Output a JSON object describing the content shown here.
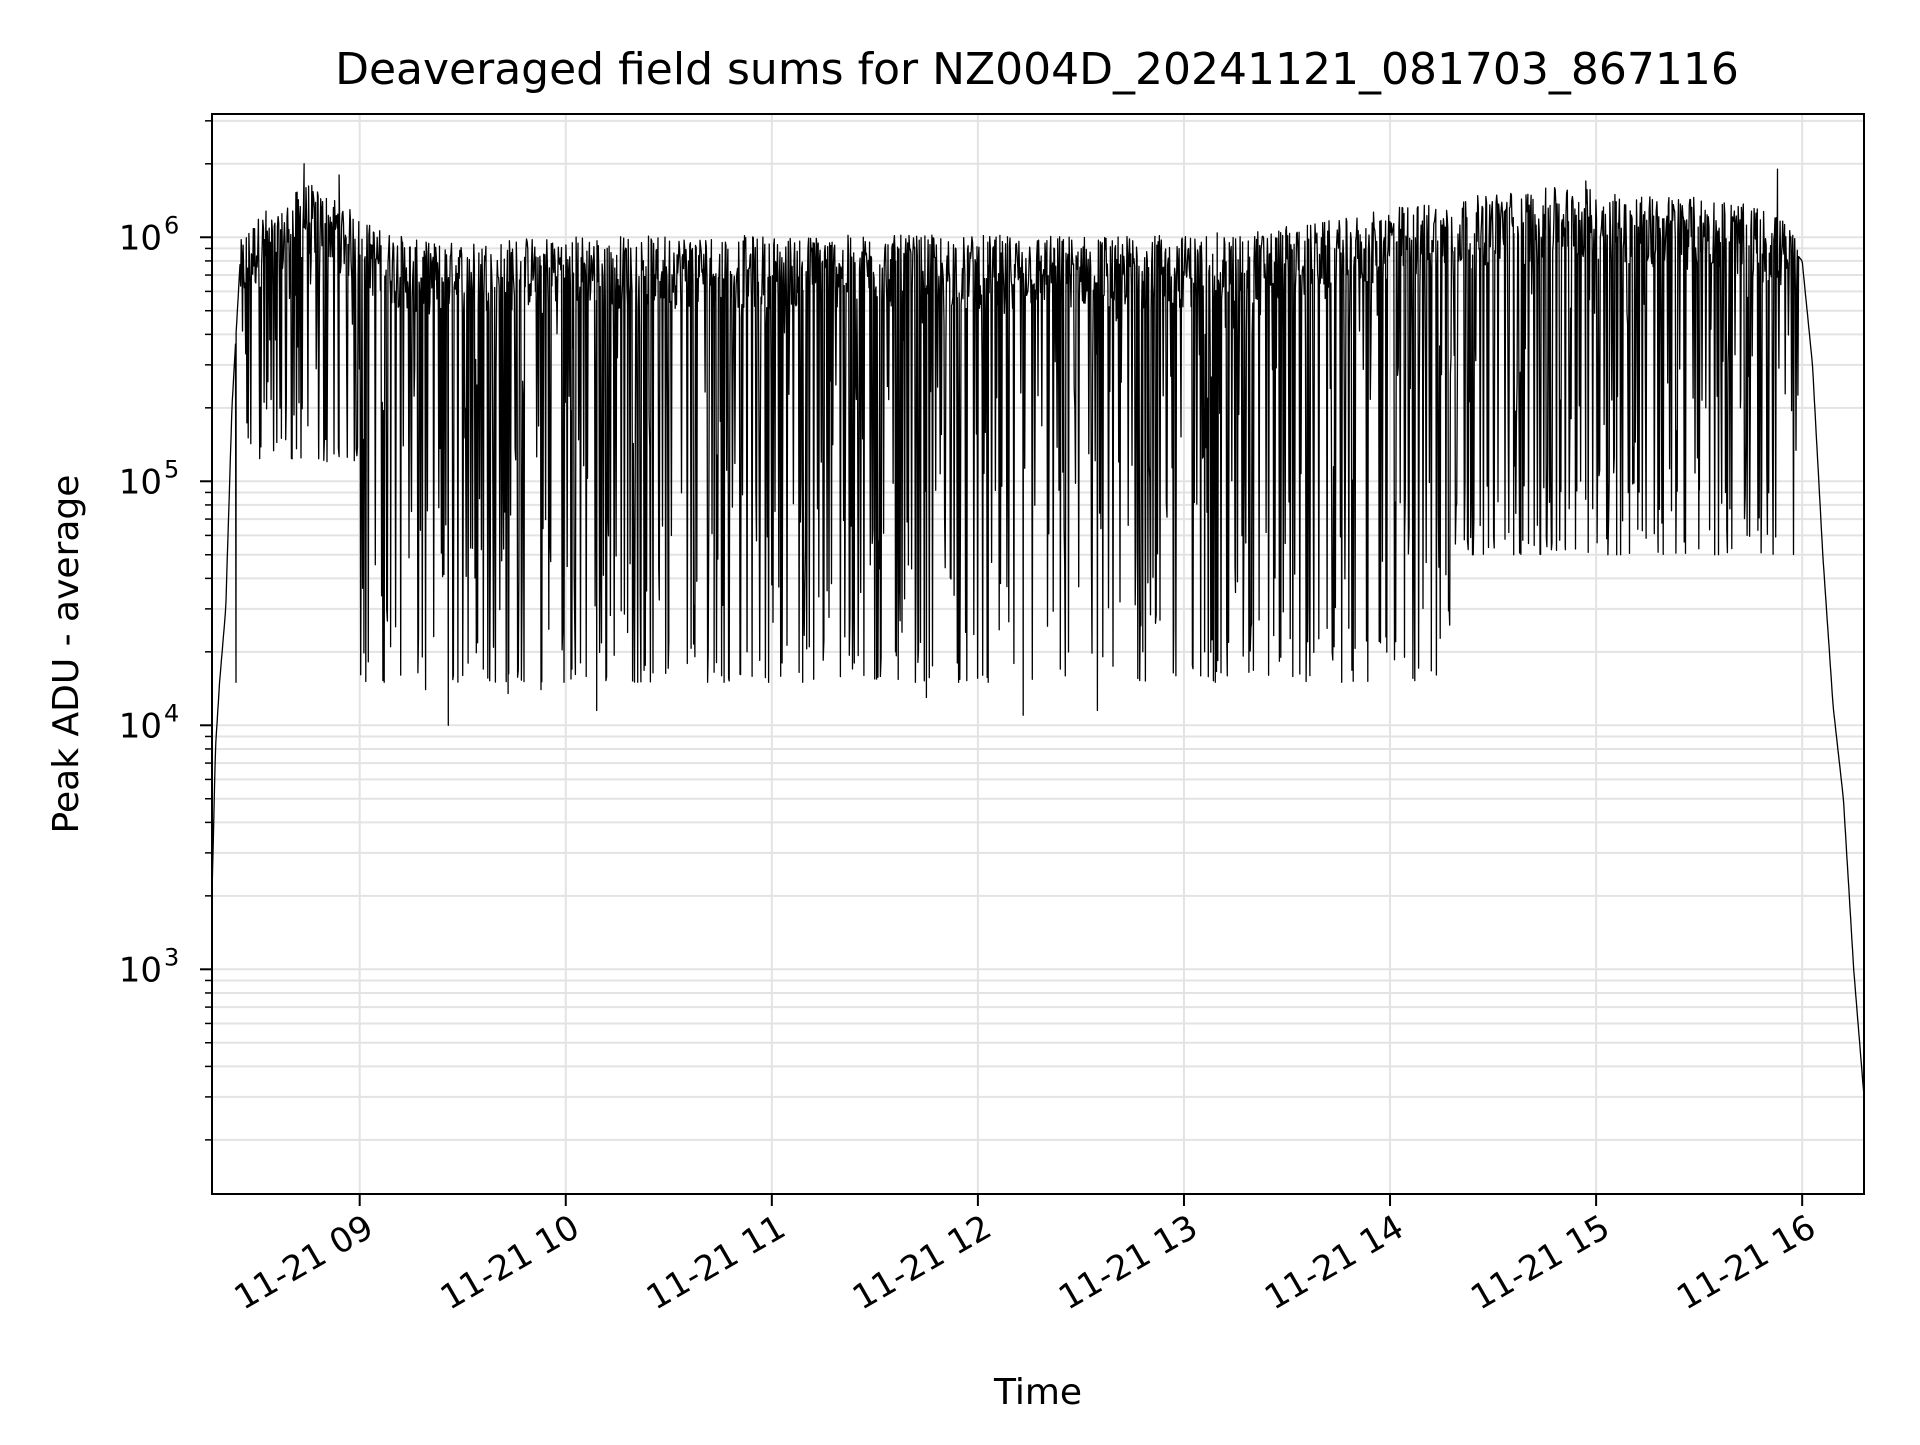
{
  "chart_data": {
    "type": "line",
    "title": "Deaveraged field sums for NZ004D_20241121_081703_867116",
    "xlabel": "Time",
    "ylabel": "Peak ADU - average",
    "yscale": "log",
    "ylim": [
      120,
      3200000
    ],
    "xlim_hours": [
      8.2833,
      16.3
    ],
    "grid": true,
    "legend": "none",
    "line_color": "#000000",
    "x_ticks": [
      {
        "hour": 9,
        "label": "11-21 09"
      },
      {
        "hour": 10,
        "label": "11-21 10"
      },
      {
        "hour": 11,
        "label": "11-21 11"
      },
      {
        "hour": 12,
        "label": "11-21 12"
      },
      {
        "hour": 13,
        "label": "11-21 13"
      },
      {
        "hour": 14,
        "label": "11-21 14"
      },
      {
        "hour": 15,
        "label": "11-21 15"
      },
      {
        "hour": 16,
        "label": "11-21 16"
      }
    ],
    "y_ticks": [
      {
        "value": 1000,
        "base": "10",
        "exp": "3"
      },
      {
        "value": 10000,
        "base": "10",
        "exp": "4"
      },
      {
        "value": 100000,
        "base": "10",
        "exp": "5"
      },
      {
        "value": 1000000,
        "base": "10",
        "exp": "6"
      }
    ],
    "series": [
      {
        "x": [
          8.2833,
          8.3,
          8.32,
          8.35,
          8.38,
          8.42,
          8.45,
          8.5,
          8.55,
          8.6,
          8.65,
          8.7,
          8.75,
          8.8,
          8.9,
          9.0,
          9.1,
          9.2,
          9.3,
          9.4,
          9.5,
          9.7,
          9.9,
          10.0,
          10.3,
          10.6,
          11.0,
          11.4,
          11.8,
          12.0,
          12.4,
          12.8,
          13.0,
          13.4,
          13.8,
          14.0,
          14.3,
          14.6,
          14.9,
          15.0,
          15.3,
          15.6,
          15.8,
          15.9,
          15.95,
          16.0,
          16.05,
          16.1,
          16.15,
          16.2,
          16.25,
          16.3
        ],
        "y": [
          2000,
          8000,
          15000,
          30000,
          200000,
          800000,
          900000,
          1000000,
          1100000,
          1000000,
          1200000,
          1300000,
          1400000,
          1300000,
          1200000,
          1000000,
          900000,
          850000,
          800000,
          800000,
          800000,
          820000,
          850000,
          850000,
          850000,
          850000,
          850000,
          850000,
          850000,
          850000,
          850000,
          850000,
          850000,
          900000,
          1000000,
          1100000,
          1200000,
          1300000,
          1350000,
          1300000,
          1250000,
          1200000,
          1100000,
          1000000,
          900000,
          800000,
          300000,
          50000,
          12000,
          5000,
          1000,
          300
        ],
        "dips": [
          {
            "x": 8.4,
            "y": 15000
          },
          {
            "x": 8.62,
            "y": 150000
          },
          {
            "x": 8.8,
            "y": 160000
          },
          {
            "x": 9.02,
            "y": 45000
          },
          {
            "x": 9.15,
            "y": 21000
          },
          {
            "x": 9.32,
            "y": 14000
          },
          {
            "x": 9.43,
            "y": 10000
          },
          {
            "x": 9.5,
            "y": 16000
          },
          {
            "x": 9.6,
            "y": 17000
          },
          {
            "x": 9.72,
            "y": 13500
          },
          {
            "x": 9.88,
            "y": 14000
          },
          {
            "x": 10.03,
            "y": 17000
          },
          {
            "x": 10.15,
            "y": 11500
          },
          {
            "x": 10.3,
            "y": 24000
          },
          {
            "x": 10.5,
            "y": 22000
          },
          {
            "x": 10.72,
            "y": 16500
          },
          {
            "x": 10.88,
            "y": 20000
          },
          {
            "x": 11.05,
            "y": 18000
          },
          {
            "x": 11.15,
            "y": 15000
          },
          {
            "x": 11.4,
            "y": 18000
          },
          {
            "x": 11.6,
            "y": 20000
          },
          {
            "x": 11.75,
            "y": 13000
          },
          {
            "x": 11.9,
            "y": 18000
          },
          {
            "x": 12.05,
            "y": 15000
          },
          {
            "x": 12.22,
            "y": 11000
          },
          {
            "x": 12.4,
            "y": 17000
          },
          {
            "x": 12.58,
            "y": 11500
          },
          {
            "x": 12.8,
            "y": 20000
          },
          {
            "x": 12.95,
            "y": 25000
          },
          {
            "x": 13.1,
            "y": 20000
          },
          {
            "x": 13.25,
            "y": 35000
          },
          {
            "x": 13.47,
            "y": 19000
          },
          {
            "x": 13.6,
            "y": 22000
          },
          {
            "x": 13.8,
            "y": 25000
          },
          {
            "x": 13.98,
            "y": 23000
          },
          {
            "x": 14.07,
            "y": 19000
          },
          {
            "x": 14.2,
            "y": 28000
          },
          {
            "x": 14.4,
            "y": 50000
          },
          {
            "x": 14.6,
            "y": 50000
          },
          {
            "x": 14.85,
            "y": 55000
          },
          {
            "x": 15.1,
            "y": 50000
          },
          {
            "x": 15.3,
            "y": 60000
          },
          {
            "x": 15.5,
            "y": 130000
          },
          {
            "x": 15.7,
            "y": 200000
          }
        ],
        "spikes": [
          {
            "x": 8.73,
            "y": 2000000
          },
          {
            "x": 8.9,
            "y": 1800000
          },
          {
            "x": 15.88,
            "y": 1900000
          },
          {
            "x": 14.95,
            "y": 1700000
          }
        ]
      }
    ]
  }
}
